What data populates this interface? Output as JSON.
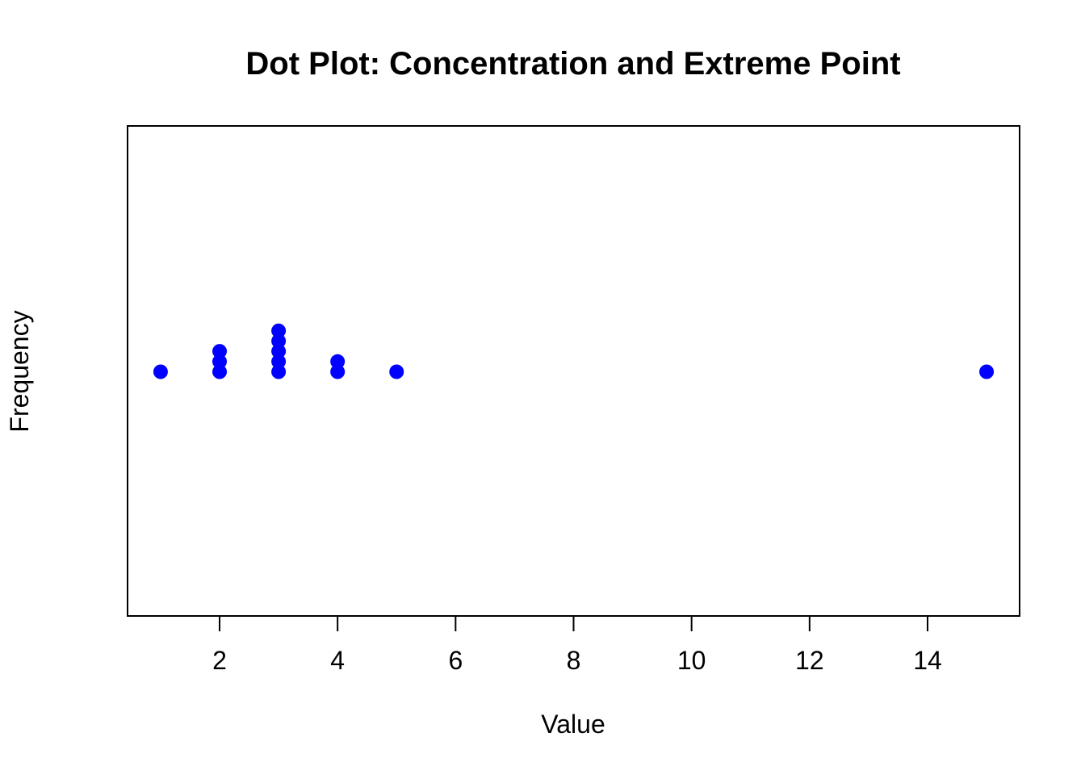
{
  "chart_data": {
    "type": "scatter",
    "subtype": "dot-plot",
    "title": "Dot Plot: Concentration and Extreme Point",
    "xlabel": "Value",
    "ylabel": "Frequency",
    "dot_counts": [
      {
        "value": 1,
        "count": 1
      },
      {
        "value": 2,
        "count": 3
      },
      {
        "value": 3,
        "count": 5
      },
      {
        "value": 4,
        "count": 2
      },
      {
        "value": 5,
        "count": 1
      },
      {
        "value": 15,
        "count": 1
      }
    ],
    "values_flat": [
      1,
      2,
      2,
      2,
      3,
      3,
      3,
      3,
      3,
      4,
      4,
      5,
      15
    ],
    "x_ticks": [
      2,
      4,
      6,
      8,
      10,
      12,
      14
    ],
    "xlim": [
      0.44,
      15.56
    ],
    "grid": false,
    "legend": false,
    "colors": {
      "dot": "#0000FF",
      "axis": "#000000",
      "text": "#000000",
      "background": "#FFFFFF"
    }
  }
}
